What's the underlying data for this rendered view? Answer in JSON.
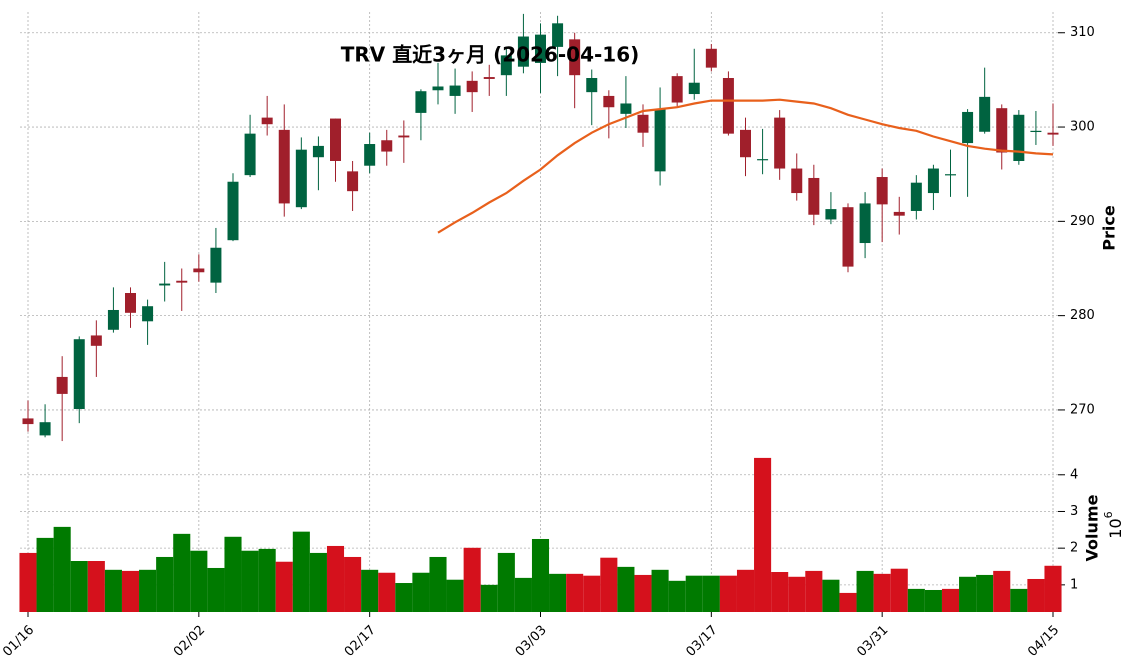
{
  "chart_data": {
    "type": "candlestick",
    "title": "TRV 直近3ヶ月 (2026-04-16)",
    "ylabel": "Price",
    "volume_label": "Volume",
    "volume_exponent": {
      "base": "10",
      "exp": "6"
    },
    "categories": [
      "01/16",
      null,
      null,
      null,
      null,
      null,
      null,
      null,
      null,
      null,
      "02/02",
      null,
      null,
      null,
      null,
      null,
      null,
      null,
      null,
      null,
      "02/17",
      null,
      null,
      null,
      null,
      null,
      null,
      null,
      null,
      null,
      "03/03",
      null,
      null,
      null,
      null,
      null,
      null,
      null,
      null,
      null,
      "03/17",
      null,
      null,
      null,
      null,
      null,
      null,
      null,
      null,
      null,
      "03/31",
      null,
      null,
      null,
      null,
      null,
      null,
      null,
      null,
      null,
      "04/15"
    ],
    "open": [
      269.1,
      267.3,
      273.5,
      270.1,
      277.9,
      278.5,
      282.4,
      279.4,
      283.2,
      283.7,
      285.0,
      283.5,
      288.0,
      294.9,
      301.0,
      299.7,
      291.5,
      296.8,
      300.9,
      295.3,
      295.9,
      298.6,
      299.1,
      301.5,
      303.9,
      303.3,
      304.9,
      305.3,
      305.5,
      306.4,
      306.8,
      308.5,
      309.3,
      303.7,
      303.3,
      301.4,
      301.3,
      295.3,
      305.4,
      303.5,
      308.3,
      305.2,
      299.7,
      296.5,
      301.0,
      295.6,
      294.6,
      290.2,
      291.5,
      287.7,
      294.7,
      291.0,
      291.1,
      293.0,
      294.9,
      298.3,
      299.5,
      302.0,
      296.4,
      299.5,
      299.4
    ],
    "high": [
      271.0,
      270.6,
      275.7,
      277.8,
      279.5,
      283.0,
      283.0,
      281.7,
      285.7,
      285.0,
      286.5,
      289.3,
      295.1,
      301.3,
      303.3,
      302.4,
      298.9,
      299.0,
      300.9,
      296.4,
      299.4,
      299.7,
      300.7,
      304.0,
      306.8,
      306.2,
      305.9,
      306.6,
      308.4,
      312.0,
      311.0,
      311.8,
      310.0,
      306.1,
      303.9,
      305.4,
      302.4,
      304.2,
      305.7,
      308.3,
      308.8,
      305.9,
      301.0,
      299.8,
      301.8,
      297.2,
      296.0,
      293.1,
      291.9,
      293.1,
      295.6,
      292.6,
      294.9,
      296.0,
      297.6,
      301.9,
      306.3,
      302.4,
      301.8,
      301.7,
      302.5
    ],
    "low": [
      267.7,
      267.1,
      266.7,
      268.6,
      273.5,
      278.2,
      278.7,
      276.9,
      281.5,
      280.5,
      283.6,
      282.4,
      287.9,
      294.7,
      299.1,
      290.5,
      291.3,
      293.3,
      294.2,
      291.1,
      295.1,
      295.9,
      296.2,
      298.6,
      302.4,
      301.4,
      301.6,
      303.3,
      303.3,
      305.7,
      303.6,
      305.4,
      302.0,
      300.2,
      298.8,
      299.9,
      297.9,
      293.8,
      302.2,
      302.9,
      305.9,
      299.1,
      294.8,
      295.0,
      294.4,
      292.2,
      289.6,
      289.7,
      284.6,
      286.1,
      287.8,
      288.6,
      290.2,
      291.2,
      292.6,
      292.6,
      299.3,
      295.5,
      296.0,
      298.1,
      298.0
    ],
    "close": [
      268.5,
      268.7,
      271.7,
      277.5,
      276.8,
      280.6,
      280.3,
      281.0,
      283.4,
      283.5,
      284.6,
      287.2,
      294.2,
      299.3,
      300.3,
      291.9,
      297.6,
      298.0,
      296.4,
      293.2,
      298.2,
      297.4,
      298.9,
      303.8,
      304.3,
      304.4,
      303.7,
      305.1,
      307.6,
      309.6,
      309.8,
      311.0,
      305.5,
      305.2,
      302.1,
      302.5,
      299.4,
      301.9,
      302.6,
      304.7,
      306.3,
      299.3,
      296.8,
      296.6,
      295.6,
      293.0,
      290.7,
      291.3,
      285.2,
      291.9,
      291.8,
      290.6,
      294.1,
      295.6,
      295.0,
      301.6,
      303.2,
      297.3,
      301.3,
      299.6,
      299.2
    ],
    "volume": [
      1.87,
      2.28,
      2.58,
      1.65,
      1.65,
      1.41,
      1.38,
      1.41,
      1.76,
      2.39,
      1.93,
      1.46,
      2.31,
      1.93,
      1.98,
      1.63,
      2.45,
      1.87,
      2.06,
      1.76,
      1.41,
      1.33,
      1.05,
      1.33,
      1.76,
      1.14,
      2.01,
      1.0,
      1.87,
      1.19,
      2.25,
      1.3,
      1.3,
      1.25,
      1.74,
      1.49,
      1.27,
      1.41,
      1.11,
      1.25,
      1.25,
      1.25,
      1.41,
      4.46,
      1.35,
      1.22,
      1.38,
      1.14,
      0.78,
      1.38,
      1.3,
      1.44,
      0.89,
      0.86,
      0.89,
      1.22,
      1.27,
      1.38,
      0.89,
      1.16,
      1.52
    ],
    "ma": {
      "color": "#e8601c",
      "values": [
        null,
        null,
        null,
        null,
        null,
        null,
        null,
        null,
        null,
        null,
        null,
        null,
        null,
        null,
        null,
        null,
        null,
        null,
        null,
        null,
        null,
        null,
        null,
        null,
        288.8,
        289.9,
        290.9,
        292.0,
        293.0,
        294.3,
        295.5,
        297.0,
        298.3,
        299.4,
        300.3,
        301.0,
        301.7,
        301.9,
        302.1,
        302.5,
        302.8,
        302.8,
        302.8,
        302.8,
        302.9,
        302.7,
        302.5,
        302.0,
        301.3,
        300.8,
        300.3,
        299.9,
        299.6,
        299.0,
        298.5,
        298.0,
        297.7,
        297.5,
        297.4,
        297.2,
        297.1
      ]
    },
    "ylim": [
      266.6,
      312.2
    ],
    "yticks": [
      270,
      280,
      290,
      300,
      310
    ],
    "volume_ylim": [
      0.26,
      4.73
    ],
    "volume_yticks": [
      1,
      2,
      3,
      4
    ],
    "up_color": "#006340",
    "down_color": "#a01f2b",
    "volume_up_color": "#007a00",
    "volume_down_color": "#d5111c",
    "grid": true
  }
}
